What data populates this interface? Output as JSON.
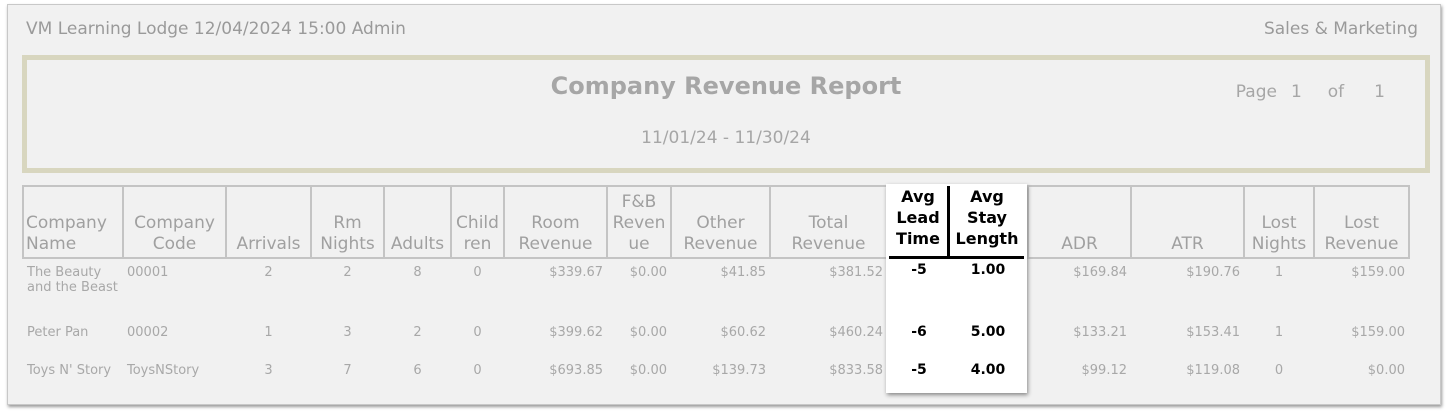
{
  "header": {
    "left": "VM Learning Lodge 12/04/2024 15:00  Admin",
    "right": "Sales & Marketing"
  },
  "report": {
    "title": "Company Revenue Report",
    "date_range": "11/01/24 - 11/30/24",
    "page_label": "Page",
    "page": "1",
    "of_label": "of",
    "total_pages": "1"
  },
  "columns": [
    "Company Name",
    "Company Code",
    "Arrivals",
    "Rm Nights",
    "Adults",
    "Child ren",
    "Room Revenue",
    "F&B Reven ue",
    "Other Revenue",
    "Total Revenue",
    "Avg Lead Time",
    "Avg Stay Length",
    "ADR",
    "ATR",
    "Lost Nights",
    "Lost Revenue"
  ],
  "rows": [
    {
      "name": "The Beauty and the Beast",
      "code": "00001",
      "arrivals": "2",
      "rm_nights": "2",
      "adults": "8",
      "children": "0",
      "room_rev": "$339.67",
      "fb_rev": "$0.00",
      "other_rev": "$41.85",
      "total_rev": "$381.52",
      "lead": "-5",
      "stay": "1.00",
      "adr": "$169.84",
      "atr": "$190.76",
      "lost_nights": "1",
      "lost_rev": "$159.00"
    },
    {
      "name": "Peter Pan",
      "code": "00002",
      "arrivals": "1",
      "rm_nights": "3",
      "adults": "2",
      "children": "0",
      "room_rev": "$399.62",
      "fb_rev": "$0.00",
      "other_rev": "$60.62",
      "total_rev": "$460.24",
      "lead": "-6",
      "stay": "5.00",
      "adr": "$133.21",
      "atr": "$153.41",
      "lost_nights": "1",
      "lost_rev": "$159.00"
    },
    {
      "name": "Toys N' Story",
      "code": "ToysNStory",
      "arrivals": "3",
      "rm_nights": "7",
      "adults": "6",
      "children": "0",
      "room_rev": "$693.85",
      "fb_rev": "$0.00",
      "other_rev": "$139.73",
      "total_rev": "$833.58",
      "lead": "-5",
      "stay": "4.00",
      "adr": "$99.12",
      "atr": "$119.08",
      "lost_nights": "0",
      "lost_rev": "$0.00"
    }
  ]
}
